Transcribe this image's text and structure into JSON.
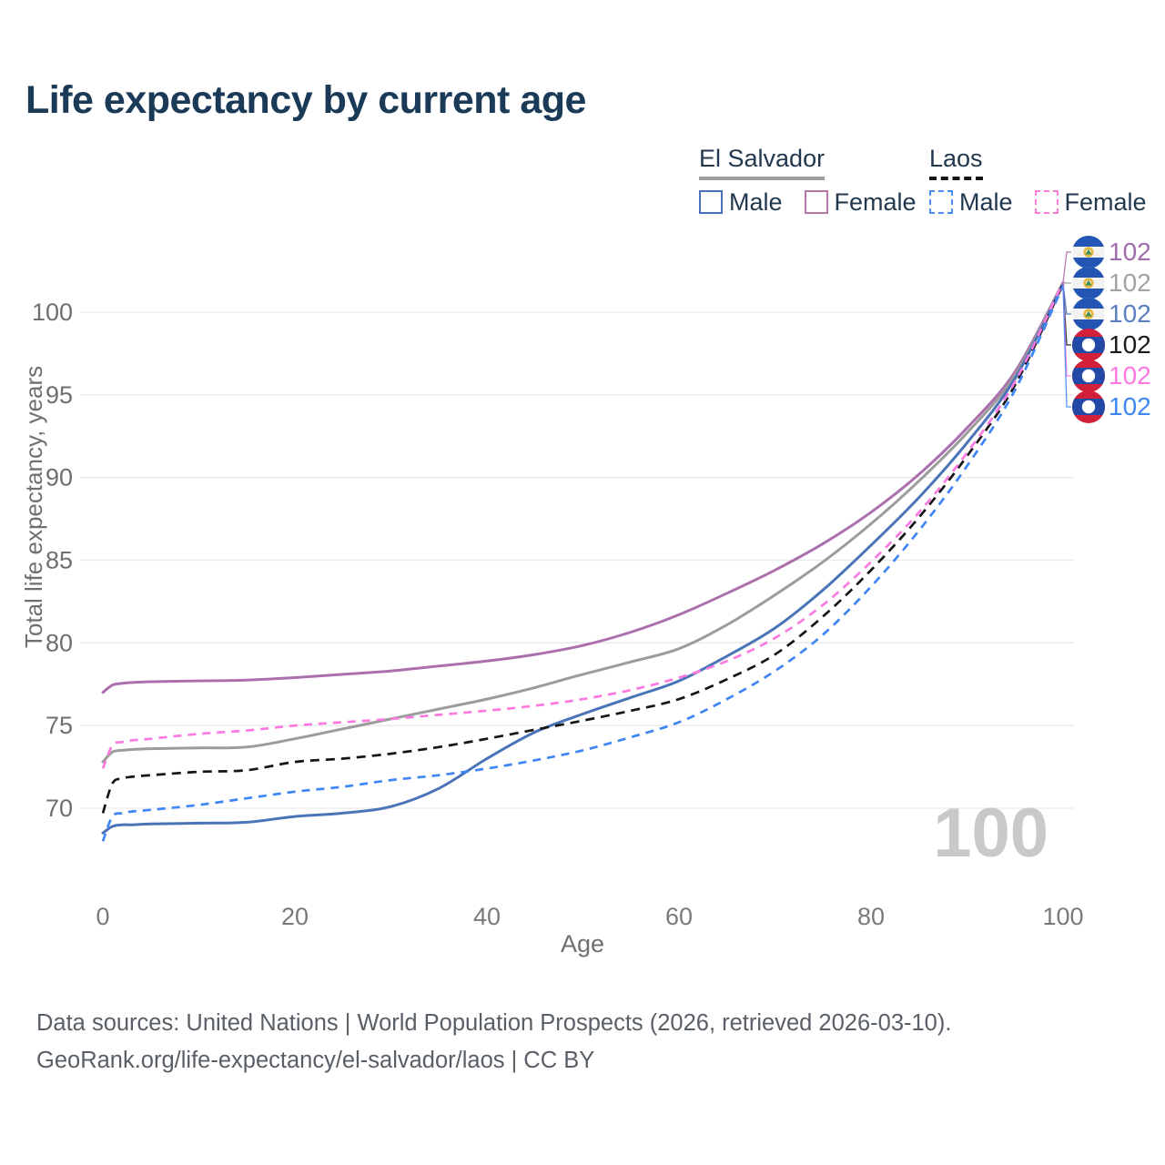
{
  "title": "Life expectancy by current age",
  "watermark": "100",
  "legend": {
    "groups": [
      {
        "name": "El Salvador",
        "line_style": "solid",
        "underline_color": "#9e9e9e",
        "items": [
          {
            "label": "Male",
            "color": "#4a74b8",
            "dash": false
          },
          {
            "label": "Female",
            "color": "#b578a8",
            "dash": false
          }
        ]
      },
      {
        "name": "Laos",
        "line_style": "dashed",
        "underline_color": "#151515",
        "items": [
          {
            "label": "Male",
            "color": "#4b8cf5",
            "dash": true
          },
          {
            "label": "Female",
            "color": "#fc7ce0",
            "dash": true
          }
        ]
      }
    ]
  },
  "end_labels": [
    {
      "flag": "el-salvador",
      "series": "El Salvador Female",
      "value": "102",
      "color": "#a06cb0"
    },
    {
      "flag": "el-salvador",
      "series": "El Salvador Both sexes",
      "value": "102",
      "color": "#a3a3a3"
    },
    {
      "flag": "el-salvador",
      "series": "El Salvador Male",
      "value": "102",
      "color": "#5b7fc0"
    },
    {
      "flag": "laos",
      "series": "Laos Both sexes",
      "value": "102",
      "color": "#1a1a1a"
    },
    {
      "flag": "laos",
      "series": "Laos Female",
      "value": "102",
      "color": "#fb79e1"
    },
    {
      "flag": "laos",
      "series": "Laos Male",
      "value": "102",
      "color": "#3f86f5"
    }
  ],
  "footer": {
    "line1": "Data sources: United Nations | World Population Prospects (2026, retrieved 2026-03-10).",
    "line2": "GeoRank.org/life-expectancy/el-salvador/laos | CC BY"
  },
  "chart_data": {
    "type": "line",
    "title": "Life expectancy by current age",
    "xlabel": "Age",
    "ylabel": "Total life expectancy, years",
    "xlim": [
      0,
      100
    ],
    "ylim": [
      67,
      103
    ],
    "x_ticks": [
      0,
      20,
      40,
      60,
      80,
      100
    ],
    "y_ticks": [
      70,
      75,
      80,
      85,
      90,
      95,
      100
    ],
    "grid": "horizontal-only",
    "legend_position": "top-right",
    "x": [
      0,
      1,
      2,
      3,
      5,
      10,
      15,
      20,
      25,
      30,
      35,
      40,
      45,
      50,
      55,
      60,
      65,
      70,
      75,
      80,
      85,
      90,
      95,
      100
    ],
    "series": [
      {
        "name": "El Salvador Female",
        "country": "El Salvador",
        "sex": "female",
        "color": "#ac6fae",
        "dash": null,
        "width": 3,
        "values": [
          77,
          77.45,
          77.55,
          77.6,
          77.65,
          77.7,
          77.75,
          77.9,
          78.1,
          78.3,
          78.6,
          78.9,
          79.3,
          79.85,
          80.65,
          81.7,
          83,
          84.4,
          86,
          87.9,
          90.2,
          93,
          96.4,
          101.8
        ]
      },
      {
        "name": "El Salvador Both sexes",
        "country": "El Salvador",
        "sex": "all",
        "color": "#9c9c9c",
        "dash": null,
        "width": 3,
        "values": [
          72.8,
          73.4,
          73.5,
          73.55,
          73.6,
          73.65,
          73.7,
          74.2,
          74.8,
          75.4,
          76,
          76.6,
          77.3,
          78.1,
          78.85,
          79.65,
          81.1,
          82.9,
          84.9,
          87.2,
          89.8,
          92.7,
          96.2,
          101.8
        ]
      },
      {
        "name": "El Salvador Male",
        "country": "El Salvador",
        "sex": "male",
        "color": "#4a74b8",
        "dash": null,
        "width": 3,
        "values": [
          68.5,
          68.9,
          69,
          69,
          69.05,
          69.1,
          69.15,
          69.5,
          69.7,
          70.1,
          71.2,
          73,
          74.6,
          75.7,
          76.7,
          77.7,
          79.2,
          80.9,
          83.2,
          85.9,
          88.8,
          92.1,
          96,
          101.7
        ]
      },
      {
        "name": "Laos Both sexes",
        "country": "Laos",
        "sex": "all",
        "color": "#151515",
        "dash": "10 7",
        "width": 2.7,
        "values": [
          69.7,
          71.5,
          71.8,
          71.9,
          72,
          72.2,
          72.3,
          72.8,
          73,
          73.3,
          73.7,
          74.2,
          74.75,
          75.3,
          75.9,
          76.6,
          77.8,
          79.3,
          81.6,
          84.4,
          87.6,
          91.3,
          95.6,
          101.7
        ]
      },
      {
        "name": "Laos Female",
        "country": "Laos",
        "sex": "female",
        "color": "#fb79e1",
        "dash": "9 7",
        "width": 2.7,
        "values": [
          72.4,
          73.8,
          74,
          74.1,
          74.2,
          74.5,
          74.7,
          75,
          75.2,
          75.4,
          75.65,
          75.9,
          76.2,
          76.6,
          77.15,
          77.9,
          78.9,
          80.3,
          82.3,
          84.9,
          87.9,
          91.5,
          95.8,
          101.8
        ]
      },
      {
        "name": "Laos Male",
        "country": "Laos",
        "sex": "male",
        "color": "#3f86f5",
        "dash": "9 7",
        "width": 2.7,
        "values": [
          68,
          69.5,
          69.7,
          69.8,
          69.9,
          70.2,
          70.6,
          71,
          71.3,
          71.7,
          72,
          72.4,
          72.9,
          73.5,
          74.3,
          75.2,
          76.6,
          78.3,
          80.5,
          83.4,
          86.8,
          90.7,
          95.3,
          101.6
        ]
      }
    ]
  }
}
